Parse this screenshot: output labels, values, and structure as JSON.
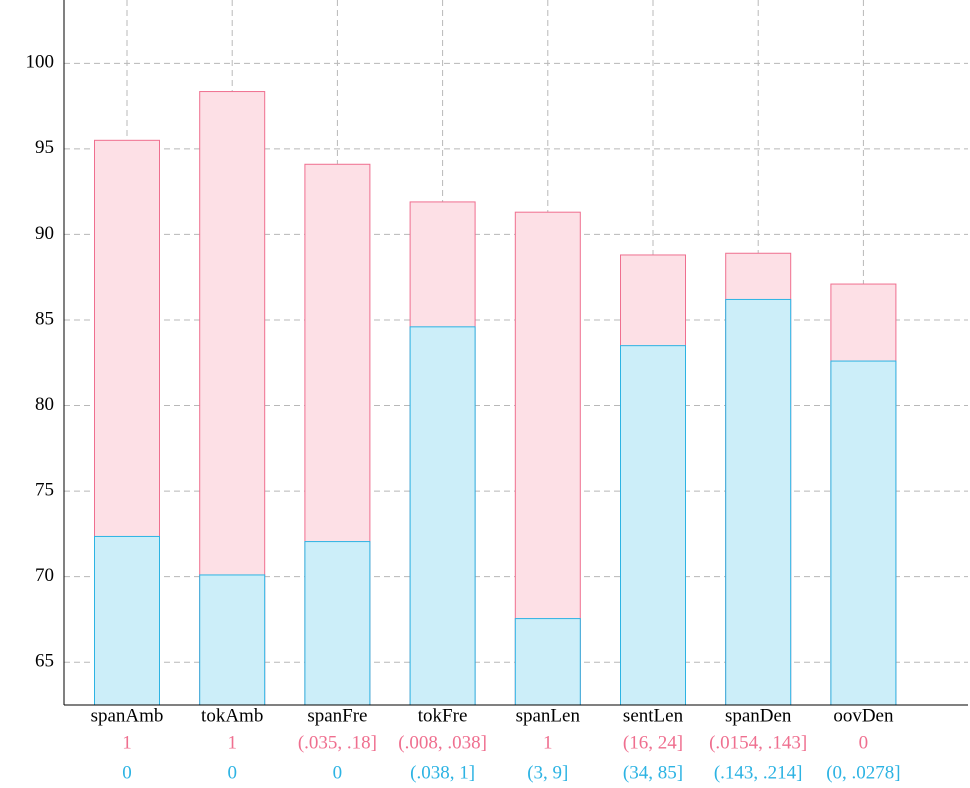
{
  "chart_data": {
    "type": "bar",
    "categories": [
      "spanAmb",
      "tokAmb",
      "spanFre",
      "tokFre",
      "spanLen",
      "sentLen",
      "spanDen",
      "oovDen"
    ],
    "series": [
      {
        "color": "#ef6f8f",
        "fill": "#fde0e6",
        "values": [
          95.5,
          98.35,
          94.1,
          91.9,
          91.3,
          88.8,
          88.9,
          87.1
        ],
        "bucket_labels": [
          "1",
          "1",
          "(.035, .18]",
          "(.008, .038]",
          "1",
          "(16, 24]",
          "(.0154, .143]",
          "0"
        ]
      },
      {
        "color": "#2cb3e3",
        "fill": "#cceef9",
        "values": [
          72.35,
          70.1,
          72.05,
          84.6,
          67.55,
          83.5,
          86.2,
          82.6
        ],
        "bucket_labels": [
          "0",
          "0",
          "0",
          "(.038, 1]",
          "(3, 9]",
          "(34, 85]",
          "(.143, .214]",
          "(0, .0278]"
        ]
      }
    ],
    "ylim": [
      62.5,
      103.7
    ],
    "yticks": [
      65,
      70,
      75,
      80,
      85,
      90,
      95,
      100
    ],
    "grid": true
  }
}
